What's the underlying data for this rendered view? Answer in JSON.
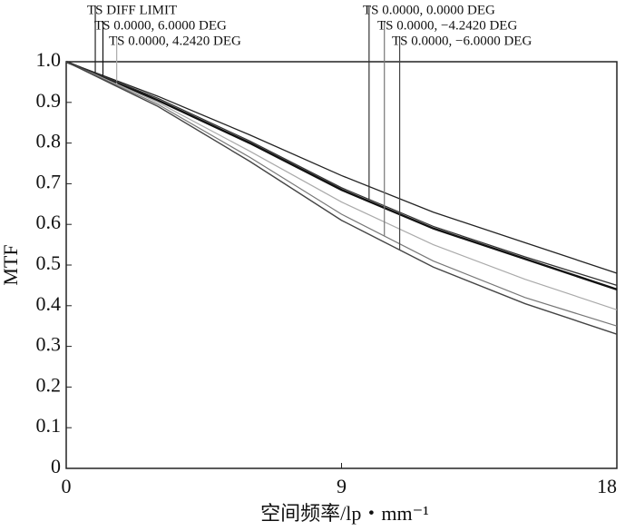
{
  "chart_data": {
    "type": "line",
    "xlabel": "空间频率/lp・mm⁻¹",
    "ylabel": "MTF",
    "x": [
      0,
      3,
      6,
      9,
      12,
      15,
      18
    ],
    "series": [
      {
        "name": "TS DIFF LIMIT",
        "color": "#222222",
        "values": [
          1.0,
          0.915,
          0.82,
          0.72,
          0.63,
          0.555,
          0.48
        ]
      },
      {
        "name": "TS 0.0000, 6.0000 DEG",
        "color": "#111111",
        "values": [
          1.0,
          0.905,
          0.8,
          0.685,
          0.59,
          0.515,
          0.44
        ]
      },
      {
        "name": "TS 0.0000, 4.2420 DEG",
        "color": "#aaaaaa",
        "values": [
          1.0,
          0.9,
          0.78,
          0.655,
          0.55,
          0.465,
          0.39
        ]
      },
      {
        "name": "TS 0.0000, 0.0000 DEG",
        "color": "#333333",
        "values": [
          1.0,
          0.91,
          0.805,
          0.69,
          0.595,
          0.52,
          0.45
        ]
      },
      {
        "name": "TS 0.0000, −4.2420 DEG",
        "color": "#777777",
        "values": [
          1.0,
          0.895,
          0.765,
          0.625,
          0.51,
          0.42,
          0.35
        ]
      },
      {
        "name": "TS 0.0000, −6.0000 DEG",
        "color": "#444444",
        "values": [
          1.0,
          0.89,
          0.755,
          0.61,
          0.495,
          0.405,
          0.33
        ]
      }
    ],
    "xlim": [
      0,
      18
    ],
    "xticks": [
      0,
      9,
      18
    ],
    "ylim": [
      0,
      1
    ],
    "yticks": [
      0,
      0.1,
      0.2,
      0.3,
      0.4,
      0.5,
      0.6,
      0.7,
      0.8,
      0.9,
      {
        "value": 1,
        "label": "1.0"
      }
    ]
  }
}
